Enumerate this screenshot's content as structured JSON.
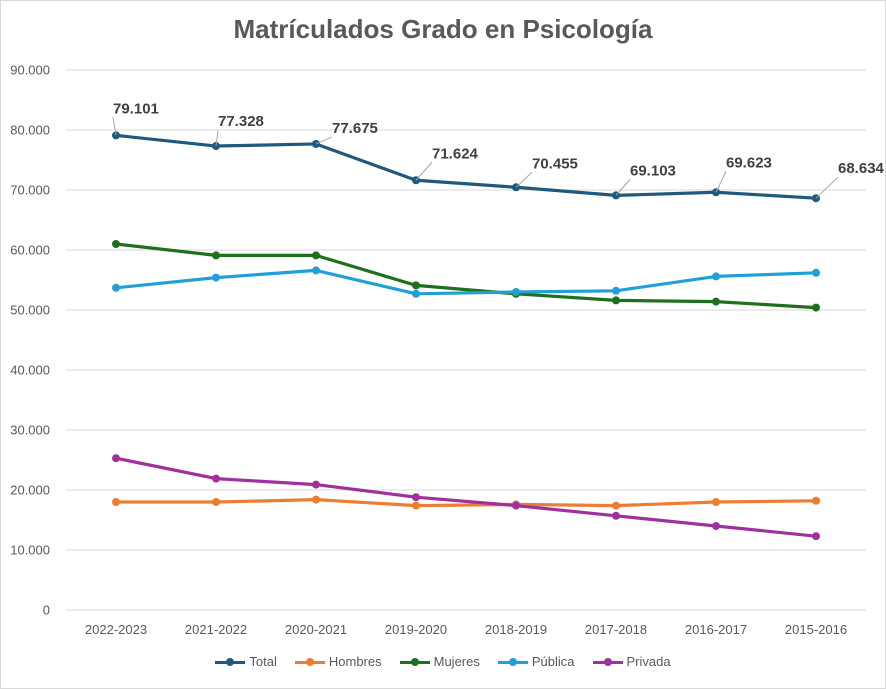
{
  "chart_data": {
    "type": "line",
    "title": "Matrículados Grado en Psicología",
    "categories": [
      "2022-2023",
      "2021-2022",
      "2020-2021",
      "2019-2020",
      "2018-2019",
      "2017-2018",
      "2016-2017",
      "2015-2016"
    ],
    "ylim": [
      0,
      90000
    ],
    "yticks": [
      "0",
      "10.000",
      "20.000",
      "30.000",
      "40.000",
      "50.000",
      "60.000",
      "70.000",
      "80.000",
      "90.000"
    ],
    "grid": true,
    "legend_position": "bottom",
    "series": [
      {
        "name": "Total",
        "color": "#1f5a7d",
        "values": [
          79101,
          77328,
          77675,
          71624,
          70455,
          69103,
          69623,
          68634
        ],
        "labels": [
          "79.101",
          "77.328",
          "77.675",
          "71.624",
          "70.455",
          "69.103",
          "69.623",
          "68.634"
        ]
      },
      {
        "name": "Hombres",
        "color": "#ed7d31",
        "values": [
          18000,
          18000,
          18400,
          17400,
          17600,
          17400,
          18000,
          18200
        ]
      },
      {
        "name": "Mujeres",
        "color": "#1e6f1e",
        "values": [
          61000,
          59100,
          59100,
          54100,
          52700,
          51600,
          51400,
          50400
        ]
      },
      {
        "name": "Pública",
        "color": "#21a0d8",
        "values": [
          53700,
          55400,
          56600,
          52700,
          53000,
          53200,
          55600,
          56200
        ]
      },
      {
        "name": "Privada",
        "color": "#a0309e",
        "values": [
          25300,
          21900,
          20900,
          18800,
          17400,
          15700,
          14000,
          12300
        ]
      }
    ]
  }
}
